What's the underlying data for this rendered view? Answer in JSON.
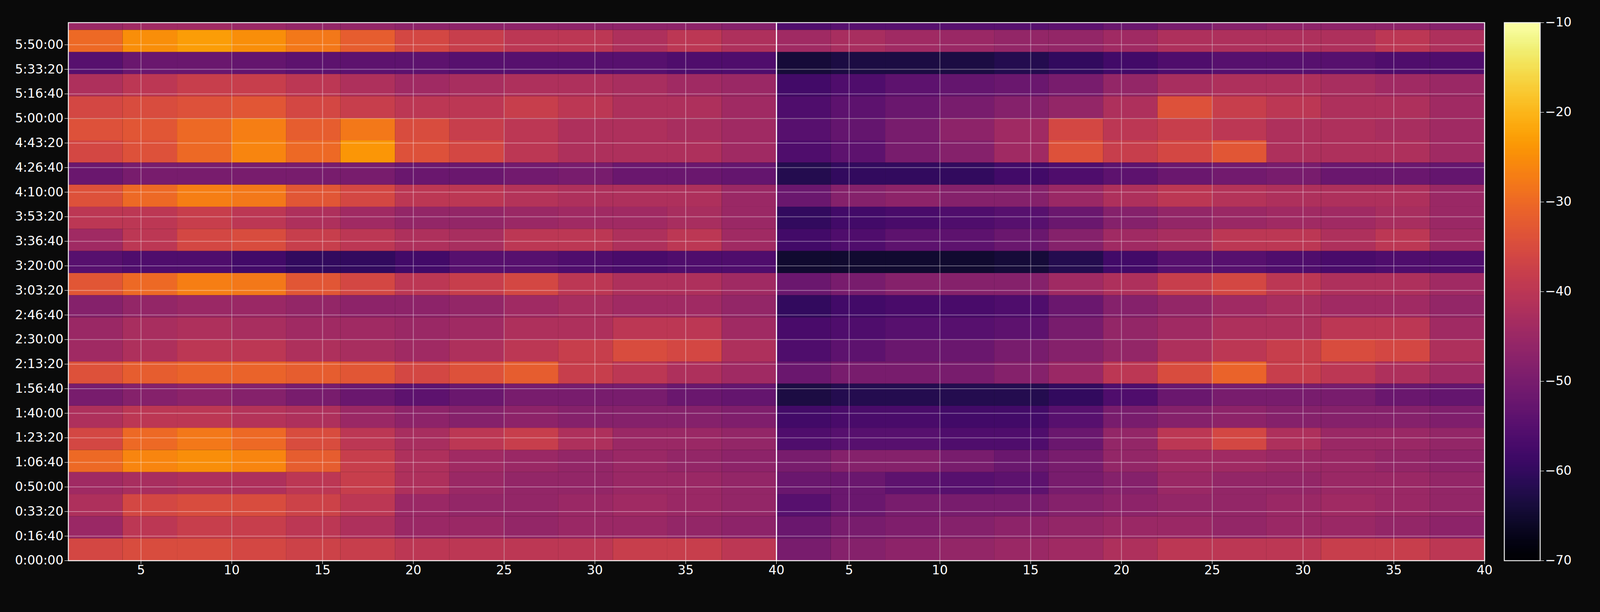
{
  "chart_data": {
    "type": "heatmap",
    "color": "inferno",
    "grid": true,
    "xlim": [
      1,
      40
    ],
    "ylim": [
      0,
      21900
    ],
    "xticks": [
      5,
      10,
      15,
      20,
      25,
      30,
      35,
      40
    ],
    "yticks": [
      {
        "value": 0,
        "label": "0:00:00"
      },
      {
        "value": 1000,
        "label": "0:16:40"
      },
      {
        "value": 2000,
        "label": "0:33:20"
      },
      {
        "value": 3000,
        "label": "0:50:00"
      },
      {
        "value": 4000,
        "label": "1:06:40"
      },
      {
        "value": 5000,
        "label": "1:23:20"
      },
      {
        "value": 6000,
        "label": "1:40:00"
      },
      {
        "value": 7000,
        "label": "1:56:40"
      },
      {
        "value": 8000,
        "label": "2:13:20"
      },
      {
        "value": 9000,
        "label": "2:30:00"
      },
      {
        "value": 10000,
        "label": "2:46:40"
      },
      {
        "value": 11000,
        "label": "3:03:20"
      },
      {
        "value": 12000,
        "label": "3:20:00"
      },
      {
        "value": 13000,
        "label": "3:36:40"
      },
      {
        "value": 14000,
        "label": "3:53:20"
      },
      {
        "value": 15000,
        "label": "4:10:00"
      },
      {
        "value": 16000,
        "label": "4:26:40"
      },
      {
        "value": 17000,
        "label": "4:43:20"
      },
      {
        "value": 18000,
        "label": "5:00:00"
      },
      {
        "value": 19000,
        "label": "5:16:40"
      },
      {
        "value": 20000,
        "label": "5:33:20"
      },
      {
        "value": 21000,
        "label": "5:50:00"
      }
    ],
    "x_edges": [
      1,
      4,
      7,
      10,
      13,
      16,
      19,
      22,
      25,
      28,
      31,
      34,
      37,
      40
    ],
    "y_edges": [
      0,
      900,
      1800,
      2700,
      3600,
      4500,
      5400,
      6300,
      7200,
      8100,
      9000,
      9900,
      10800,
      11700,
      12600,
      13500,
      14400,
      15300,
      16200,
      17100,
      18000,
      18900,
      19800,
      20700,
      21600,
      21900
    ],
    "colorbar": {
      "range": [
        -70,
        -10
      ],
      "ticks": [
        -70,
        -60,
        -50,
        -40,
        -30,
        -20,
        -10
      ]
    },
    "panels": [
      {
        "values": [
          [
            -36,
            -35,
            -35,
            -36,
            -37,
            -38,
            -40,
            -40,
            -40,
            -40,
            -38,
            -38,
            -40
          ],
          [
            -45,
            -40,
            -38,
            -38,
            -40,
            -42,
            -45,
            -45,
            -46,
            -45,
            -45,
            -46,
            -47
          ],
          [
            -42,
            -36,
            -35,
            -35,
            -37,
            -40,
            -45,
            -46,
            -46,
            -45,
            -44,
            -45,
            -46
          ],
          [
            -44,
            -43,
            -42,
            -42,
            -40,
            -38,
            -42,
            -45,
            -46,
            -46,
            -45,
            -45,
            -46
          ],
          [
            -30,
            -26,
            -25,
            -26,
            -32,
            -38,
            -42,
            -44,
            -45,
            -46,
            -45,
            -46,
            -47
          ],
          [
            -36,
            -30,
            -28,
            -30,
            -35,
            -40,
            -43,
            -40,
            -38,
            -42,
            -45,
            -45,
            -46
          ],
          [
            -42,
            -40,
            -40,
            -41,
            -42,
            -45,
            -47,
            -48,
            -47,
            -48,
            -48,
            -48,
            -49
          ],
          [
            -50,
            -48,
            -47,
            -48,
            -50,
            -52,
            -54,
            -52,
            -50,
            -50,
            -50,
            -52,
            -53
          ],
          [
            -34,
            -32,
            -31,
            -31,
            -32,
            -33,
            -36,
            -34,
            -32,
            -38,
            -40,
            -42,
            -44
          ],
          [
            -44,
            -42,
            -40,
            -40,
            -42,
            -43,
            -44,
            -42,
            -40,
            -38,
            -35,
            -36,
            -42
          ],
          [
            -45,
            -43,
            -42,
            -43,
            -44,
            -44,
            -45,
            -44,
            -42,
            -42,
            -40,
            -40,
            -44
          ],
          [
            -48,
            -46,
            -45,
            -45,
            -46,
            -47,
            -47,
            -46,
            -44,
            -43,
            -44,
            -44,
            -46
          ],
          [
            -33,
            -30,
            -27,
            -28,
            -33,
            -36,
            -40,
            -38,
            -36,
            -40,
            -42,
            -42,
            -44
          ],
          [
            -55,
            -56,
            -56,
            -58,
            -60,
            -60,
            -58,
            -55,
            -55,
            -56,
            -57,
            -56,
            -56
          ],
          [
            -44,
            -40,
            -36,
            -35,
            -38,
            -40,
            -42,
            -43,
            -40,
            -40,
            -42,
            -40,
            -44
          ],
          [
            -40,
            -40,
            -38,
            -40,
            -42,
            -44,
            -46,
            -46,
            -45,
            -44,
            -44,
            -43,
            -45
          ],
          [
            -34,
            -30,
            -27,
            -28,
            -33,
            -36,
            -40,
            -40,
            -41,
            -42,
            -42,
            -42,
            -45
          ],
          [
            -52,
            -50,
            -50,
            -50,
            -50,
            -50,
            -52,
            -52,
            -51,
            -50,
            -52,
            -52,
            -53
          ],
          [
            -36,
            -34,
            -30,
            -26,
            -30,
            -24,
            -34,
            -36,
            -40,
            -42,
            -42,
            -42,
            -44
          ],
          [
            -34,
            -33,
            -30,
            -27,
            -32,
            -28,
            -35,
            -38,
            -40,
            -42,
            -42,
            -43,
            -44
          ],
          [
            -36,
            -35,
            -34,
            -33,
            -36,
            -38,
            -40,
            -40,
            -38,
            -40,
            -42,
            -42,
            -44
          ],
          [
            -42,
            -40,
            -38,
            -38,
            -40,
            -42,
            -44,
            -43,
            -42,
            -42,
            -43,
            -44,
            -45
          ],
          [
            -55,
            -52,
            -52,
            -53,
            -54,
            -54,
            -54,
            -55,
            -55,
            -55,
            -55,
            -56,
            -56
          ],
          [
            -30,
            -25,
            -23,
            -25,
            -28,
            -32,
            -36,
            -38,
            -40,
            -40,
            -42,
            -40,
            -42
          ],
          [
            -45,
            -44,
            -44,
            -45,
            -46,
            -46,
            -47,
            -47,
            -47,
            -47,
            -47,
            -47,
            -48
          ]
        ]
      },
      {
        "values": [
          [
            -50,
            -48,
            -47,
            -46,
            -45,
            -44,
            -42,
            -40,
            -40,
            -40,
            -38,
            -38,
            -40
          ],
          [
            -52,
            -50,
            -49,
            -48,
            -47,
            -46,
            -45,
            -45,
            -46,
            -45,
            -45,
            -46,
            -47
          ],
          [
            -55,
            -52,
            -50,
            -50,
            -50,
            -48,
            -47,
            -46,
            -46,
            -45,
            -44,
            -45,
            -46
          ],
          [
            -52,
            -52,
            -54,
            -55,
            -54,
            -50,
            -48,
            -45,
            -46,
            -46,
            -45,
            -45,
            -46
          ],
          [
            -50,
            -48,
            -48,
            -50,
            -52,
            -50,
            -46,
            -44,
            -44,
            -45,
            -45,
            -46,
            -47
          ],
          [
            -56,
            -55,
            -55,
            -56,
            -56,
            -52,
            -46,
            -40,
            -36,
            -42,
            -45,
            -45,
            -46
          ],
          [
            -58,
            -57,
            -57,
            -58,
            -58,
            -55,
            -50,
            -48,
            -47,
            -48,
            -48,
            -48,
            -49
          ],
          [
            -63,
            -62,
            -62,
            -62,
            -62,
            -60,
            -56,
            -52,
            -50,
            -50,
            -50,
            -52,
            -53
          ],
          [
            -52,
            -50,
            -50,
            -50,
            -48,
            -45,
            -40,
            -35,
            -31,
            -38,
            -40,
            -42,
            -44
          ],
          [
            -56,
            -54,
            -52,
            -52,
            -50,
            -48,
            -46,
            -42,
            -40,
            -38,
            -35,
            -36,
            -42
          ],
          [
            -57,
            -56,
            -55,
            -55,
            -54,
            -50,
            -46,
            -44,
            -42,
            -42,
            -40,
            -40,
            -44
          ],
          [
            -60,
            -58,
            -57,
            -57,
            -56,
            -52,
            -48,
            -46,
            -44,
            -43,
            -44,
            -44,
            -46
          ],
          [
            -52,
            -50,
            -48,
            -48,
            -48,
            -44,
            -42,
            -38,
            -36,
            -40,
            -42,
            -42,
            -44
          ],
          [
            -65,
            -65,
            -65,
            -65,
            -64,
            -62,
            -58,
            -55,
            -55,
            -56,
            -57,
            -56,
            -56
          ],
          [
            -58,
            -56,
            -54,
            -54,
            -52,
            -48,
            -44,
            -43,
            -40,
            -40,
            -42,
            -40,
            -44
          ],
          [
            -60,
            -58,
            -57,
            -56,
            -55,
            -52,
            -48,
            -46,
            -45,
            -44,
            -44,
            -43,
            -45
          ],
          [
            -52,
            -48,
            -47,
            -48,
            -48,
            -45,
            -42,
            -40,
            -41,
            -42,
            -42,
            -42,
            -45
          ],
          [
            -62,
            -60,
            -60,
            -60,
            -58,
            -56,
            -54,
            -52,
            -51,
            -50,
            -52,
            -52,
            -53
          ],
          [
            -56,
            -54,
            -50,
            -48,
            -44,
            -34,
            -38,
            -36,
            -33,
            -42,
            -42,
            -42,
            -44
          ],
          [
            -55,
            -53,
            -50,
            -47,
            -44,
            -36,
            -40,
            -38,
            -40,
            -42,
            -42,
            -43,
            -44
          ],
          [
            -56,
            -54,
            -52,
            -50,
            -48,
            -46,
            -42,
            -34,
            -38,
            -40,
            -42,
            -42,
            -44
          ],
          [
            -58,
            -56,
            -54,
            -53,
            -52,
            -50,
            -46,
            -43,
            -42,
            -42,
            -43,
            -44,
            -45
          ],
          [
            -64,
            -63,
            -63,
            -63,
            -62,
            -60,
            -58,
            -56,
            -55,
            -55,
            -55,
            -56,
            -56
          ],
          [
            -44,
            -43,
            -44,
            -45,
            -46,
            -46,
            -44,
            -42,
            -42,
            -42,
            -42,
            -40,
            -42
          ],
          [
            -56,
            -55,
            -55,
            -55,
            -55,
            -54,
            -52,
            -50,
            -48,
            -47,
            -47,
            -47,
            -48
          ]
        ]
      }
    ]
  }
}
